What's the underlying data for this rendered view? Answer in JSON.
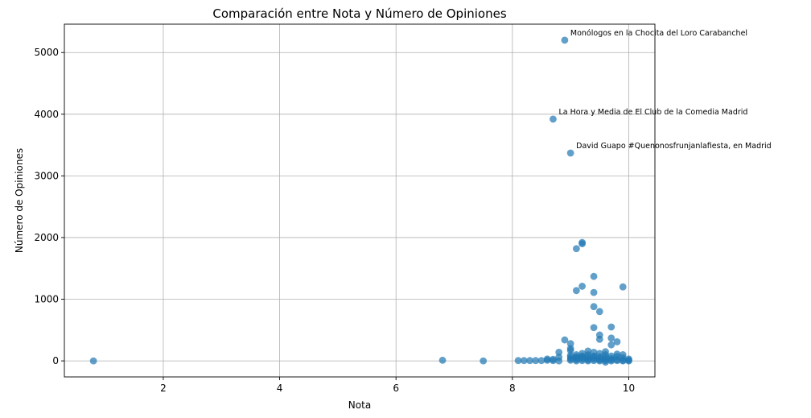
{
  "chart_data": {
    "type": "scatter",
    "title": "Comparación entre Nota y Número de Opiniones",
    "xlabel": "Nota",
    "ylabel": "Número de Opiniones",
    "xlim": [
      0.3,
      10.45
    ],
    "ylim": [
      -260,
      5460
    ],
    "xticks": [
      2,
      4,
      6,
      8,
      10
    ],
    "yticks": [
      0,
      1000,
      2000,
      3000,
      4000,
      5000
    ],
    "grid": true,
    "color": "#1f77b4",
    "points": [
      {
        "x": 0.8,
        "y": 0
      },
      {
        "x": 6.8,
        "y": 10
      },
      {
        "x": 7.5,
        "y": 0
      },
      {
        "x": 8.1,
        "y": 5
      },
      {
        "x": 8.2,
        "y": 5
      },
      {
        "x": 8.3,
        "y": 5
      },
      {
        "x": 8.4,
        "y": 5
      },
      {
        "x": 8.5,
        "y": 5
      },
      {
        "x": 8.6,
        "y": 10
      },
      {
        "x": 8.6,
        "y": 30
      },
      {
        "x": 8.7,
        "y": 5
      },
      {
        "x": 8.7,
        "y": 25
      },
      {
        "x": 8.8,
        "y": 0
      },
      {
        "x": 8.8,
        "y": 60
      },
      {
        "x": 8.8,
        "y": 140
      },
      {
        "x": 8.9,
        "y": 5200
      },
      {
        "x": 8.7,
        "y": 3920
      },
      {
        "x": 9.0,
        "y": 3370
      },
      {
        "x": 9.2,
        "y": 1920
      },
      {
        "x": 9.2,
        "y": 1900
      },
      {
        "x": 9.1,
        "y": 1820
      },
      {
        "x": 9.4,
        "y": 1370
      },
      {
        "x": 9.2,
        "y": 1210
      },
      {
        "x": 9.9,
        "y": 1200
      },
      {
        "x": 9.1,
        "y": 1140
      },
      {
        "x": 9.4,
        "y": 1110
      },
      {
        "x": 9.4,
        "y": 880
      },
      {
        "x": 9.5,
        "y": 800
      },
      {
        "x": 9.7,
        "y": 550
      },
      {
        "x": 9.4,
        "y": 540
      },
      {
        "x": 9.5,
        "y": 420
      },
      {
        "x": 9.7,
        "y": 370
      },
      {
        "x": 9.5,
        "y": 350
      },
      {
        "x": 8.9,
        "y": 340
      },
      {
        "x": 9.8,
        "y": 310
      },
      {
        "x": 9.0,
        "y": 280
      },
      {
        "x": 9.7,
        "y": 260
      },
      {
        "x": 9.0,
        "y": 200
      },
      {
        "x": 9.0,
        "y": 170
      },
      {
        "x": 9.3,
        "y": 160
      },
      {
        "x": 9.6,
        "y": 150
      },
      {
        "x": 9.4,
        "y": 140
      },
      {
        "x": 9.2,
        "y": 120
      },
      {
        "x": 9.5,
        "y": 120
      },
      {
        "x": 9.8,
        "y": 110
      },
      {
        "x": 9.9,
        "y": 100
      },
      {
        "x": 9.1,
        "y": 100
      },
      {
        "x": 9.3,
        "y": 100
      },
      {
        "x": 9.6,
        "y": 100
      },
      {
        "x": 9.0,
        "y": 90
      },
      {
        "x": 9.2,
        "y": 80
      },
      {
        "x": 9.4,
        "y": 80
      },
      {
        "x": 9.7,
        "y": 80
      },
      {
        "x": 9.1,
        "y": 70
      },
      {
        "x": 9.3,
        "y": 70
      },
      {
        "x": 9.5,
        "y": 70
      },
      {
        "x": 9.8,
        "y": 70
      },
      {
        "x": 9.0,
        "y": 60
      },
      {
        "x": 9.2,
        "y": 60
      },
      {
        "x": 9.4,
        "y": 60
      },
      {
        "x": 9.6,
        "y": 60
      },
      {
        "x": 9.9,
        "y": 50
      },
      {
        "x": 9.1,
        "y": 50
      },
      {
        "x": 9.3,
        "y": 40
      },
      {
        "x": 9.5,
        "y": 40
      },
      {
        "x": 9.7,
        "y": 40
      },
      {
        "x": 10.0,
        "y": 30
      },
      {
        "x": 9.0,
        "y": 30
      },
      {
        "x": 9.2,
        "y": 30
      },
      {
        "x": 9.4,
        "y": 30
      },
      {
        "x": 9.6,
        "y": 30
      },
      {
        "x": 9.8,
        "y": 20
      },
      {
        "x": 9.1,
        "y": 20
      },
      {
        "x": 9.3,
        "y": 15
      },
      {
        "x": 9.5,
        "y": 15
      },
      {
        "x": 9.7,
        "y": 15
      },
      {
        "x": 9.9,
        "y": 10
      },
      {
        "x": 10.0,
        "y": 10
      },
      {
        "x": 9.0,
        "y": 10
      },
      {
        "x": 9.2,
        "y": 5
      },
      {
        "x": 9.4,
        "y": 5
      },
      {
        "x": 9.6,
        "y": 5
      },
      {
        "x": 9.8,
        "y": 5
      },
      {
        "x": 10.0,
        "y": 0
      },
      {
        "x": 9.1,
        "y": 0
      },
      {
        "x": 9.3,
        "y": 0
      },
      {
        "x": 9.5,
        "y": 0
      },
      {
        "x": 9.7,
        "y": 0
      },
      {
        "x": 9.9,
        "y": 0
      },
      {
        "x": 9.6,
        "y": -20
      }
    ],
    "annotations": [
      {
        "text": "Monólogos en la Chocita del Loro Carabanchel",
        "x": 8.9,
        "y": 5200
      },
      {
        "text": "La Hora y Media de El Club de la Comedia Madrid",
        "x": 8.7,
        "y": 3920
      },
      {
        "text": "David Guapo #Quenonosfrunjanlafiesta, en Madrid",
        "x": 9.0,
        "y": 3370
      }
    ]
  }
}
